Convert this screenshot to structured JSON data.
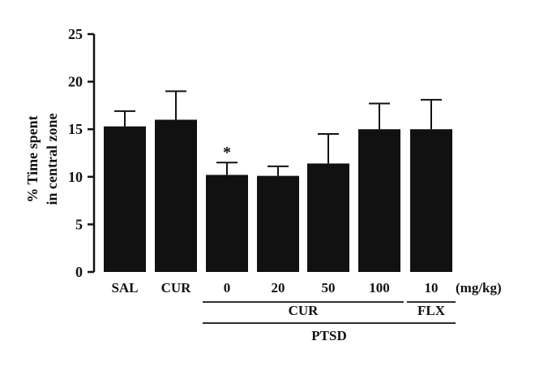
{
  "chart_data": {
    "type": "bar",
    "ylabel": [
      "% Time spent",
      "in central zone"
    ],
    "ylim": [
      0,
      25
    ],
    "yticks": [
      0,
      5,
      10,
      15,
      20,
      25
    ],
    "categories": [
      "SAL",
      "CUR",
      "0",
      "20",
      "50",
      "100",
      "10"
    ],
    "values": [
      15.3,
      16.0,
      10.2,
      10.1,
      11.4,
      15.0,
      15.0
    ],
    "errors": [
      1.6,
      3.0,
      1.3,
      1.0,
      3.1,
      2.7,
      3.1
    ],
    "bar_color": "#111111",
    "dose_unit": "(mg/kg)",
    "significance": [
      {
        "category": "0",
        "label": "*"
      }
    ],
    "groups": [
      {
        "label": "CUR",
        "from": 2,
        "to": 5
      },
      {
        "label": "FLX",
        "from": 6,
        "to": 6
      },
      {
        "label": "PTSD",
        "from": 2,
        "to": 6
      }
    ],
    "grid": false
  }
}
